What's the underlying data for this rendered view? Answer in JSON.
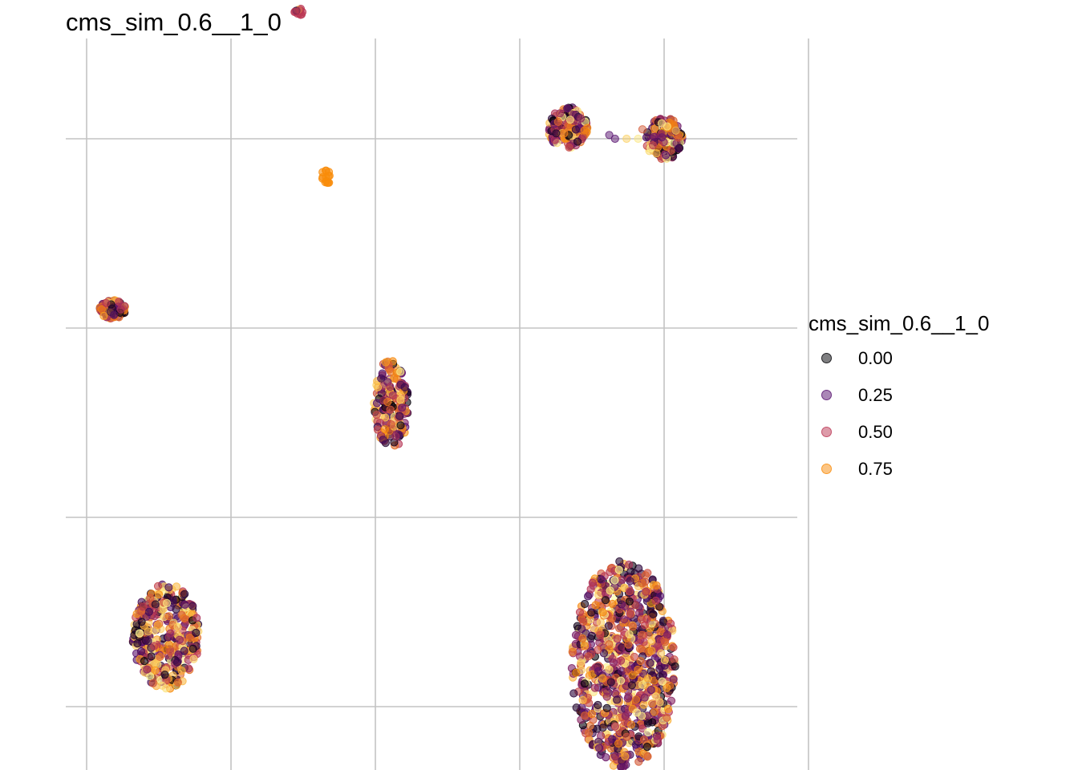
{
  "chart_data": {
    "type": "scatter",
    "title": "cms_sim_0.6__1_0",
    "xlabel": "",
    "ylabel": "",
    "grid": true,
    "axis_tick_labels": false,
    "legend": {
      "title": "cms_sim_0.6__1_0",
      "position": "right",
      "entries": [
        {
          "label": "0.00",
          "value": 0.0,
          "color": "#000004"
        },
        {
          "label": "0.25",
          "value": 0.25,
          "color": "#56106E"
        },
        {
          "label": "0.50",
          "value": 0.5,
          "color": "#BB3754"
        },
        {
          "label": "0.75",
          "value": 0.75,
          "color": "#F98C0A"
        }
      ]
    },
    "color_scale": "inferno",
    "point_alpha": 0.5,
    "xlim": [
      0,
      5
    ],
    "ylim": [
      0,
      4
    ],
    "clusters": [
      {
        "cx": 1.47,
        "cy": 3.67,
        "rx": 0.03,
        "ry": 0.02,
        "n": 12,
        "dominant": "#BB3754"
      },
      {
        "cx": 1.66,
        "cy": 2.8,
        "rx": 0.03,
        "ry": 0.05,
        "n": 14,
        "dominant": "#F98C0A"
      },
      {
        "cx": 0.18,
        "cy": 2.1,
        "rx": 0.09,
        "ry": 0.05,
        "n": 90
      },
      {
        "cx": 2.11,
        "cy": 1.6,
        "rx": 0.12,
        "ry": 0.24,
        "n": 170
      },
      {
        "cx": 3.33,
        "cy": 3.06,
        "rx": 0.14,
        "ry": 0.11,
        "n": 160
      },
      {
        "cx": 4.0,
        "cy": 3.0,
        "rx": 0.13,
        "ry": 0.11,
        "n": 160
      },
      {
        "cx": 0.55,
        "cy": 0.37,
        "rx": 0.23,
        "ry": 0.28,
        "n": 380
      },
      {
        "cx": 3.72,
        "cy": 0.22,
        "rx": 0.36,
        "ry": 0.55,
        "n": 900
      }
    ],
    "bridge_points": [
      {
        "x": 3.62,
        "y": 3.02,
        "value": 0.25
      },
      {
        "x": 3.66,
        "y": 3.0,
        "value": 0.25
      },
      {
        "x": 3.74,
        "y": 3.0,
        "value": 0.9
      },
      {
        "x": 3.82,
        "y": 3.0,
        "value": 0.95
      },
      {
        "x": 3.85,
        "y": 3.05,
        "value": 0.6
      }
    ]
  }
}
